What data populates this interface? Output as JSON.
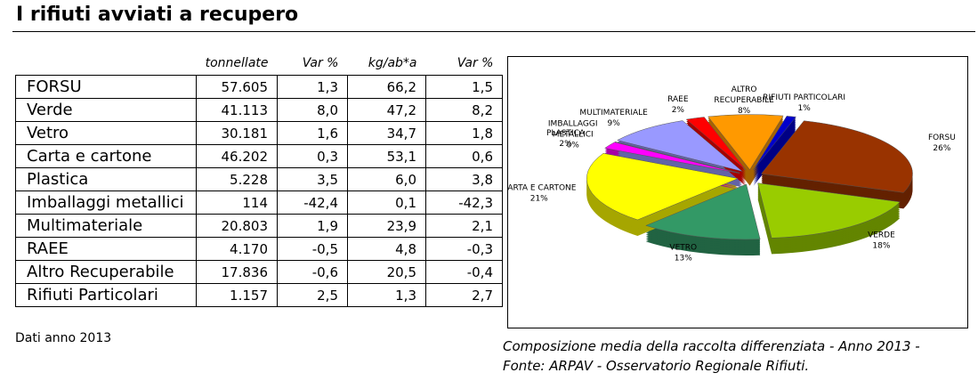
{
  "header": {
    "title": "I rifiuti avviati a recupero"
  },
  "table": {
    "columns": [
      "",
      "tonnellate",
      "Var %",
      "kg/ab*a",
      "Var %"
    ],
    "rows": [
      [
        "FORSU",
        "57.605",
        "1,3",
        "66,2",
        "1,5"
      ],
      [
        "Verde",
        "41.113",
        "8,0",
        "47,2",
        "8,2"
      ],
      [
        "Vetro",
        "30.181",
        "1,6",
        "34,7",
        "1,8"
      ],
      [
        "Carta e cartone",
        "46.202",
        "0,3",
        "53,1",
        "0,6"
      ],
      [
        "Plastica",
        "5.228",
        "3,5",
        "6,0",
        "3,8"
      ],
      [
        "Imballaggi metallici",
        "114",
        "-42,4",
        "0,1",
        "-42,3"
      ],
      [
        "Multimateriale",
        "20.803",
        "1,9",
        "23,9",
        "2,1"
      ],
      [
        "RAEE",
        "4.170",
        "-0,5",
        "4,8",
        "-0,3"
      ],
      [
        "Altro Recuperabile",
        "17.836",
        "-0,6",
        "20,5",
        "-0,4"
      ],
      [
        "Rifiuti Particolari",
        "1.157",
        "2,5",
        "1,3",
        "2,7"
      ]
    ]
  },
  "note": "Dati anno 2013",
  "chart_data": {
    "type": "pie",
    "categories": [
      [
        "ALTRO",
        "RECUPERABILE"
      ],
      [
        "RIFIUTI PARTICOLARI"
      ],
      [
        "FORSU"
      ],
      [
        "VERDE"
      ],
      [
        "VETRO"
      ],
      [
        "CARTA E CARTONE"
      ],
      [
        "PLASTICA"
      ],
      [
        "IMBALLAGGI",
        "METALLICI"
      ],
      [
        "MULTIMATERIALE"
      ],
      [
        "RAEE"
      ]
    ],
    "values": [
      8,
      1,
      26,
      18,
      13,
      21,
      2,
      0,
      9,
      2
    ],
    "value_labels": [
      "8%",
      "1%",
      "26%",
      "18%",
      "13%",
      "21%",
      "2%",
      "0%",
      "9%",
      "2%"
    ],
    "colors": [
      "#ff9900",
      "#0000cc",
      "#993300",
      "#99cc00",
      "#339966",
      "#ffff00",
      "#ff00ff",
      "#333366",
      "#9999ff",
      "#ff0000"
    ]
  },
  "caption": [
    "Composizione media della raccolta differenziata - Anno 2013 -",
    "Fonte: ARPAV - Osservatorio Regionale Rifiuti."
  ]
}
